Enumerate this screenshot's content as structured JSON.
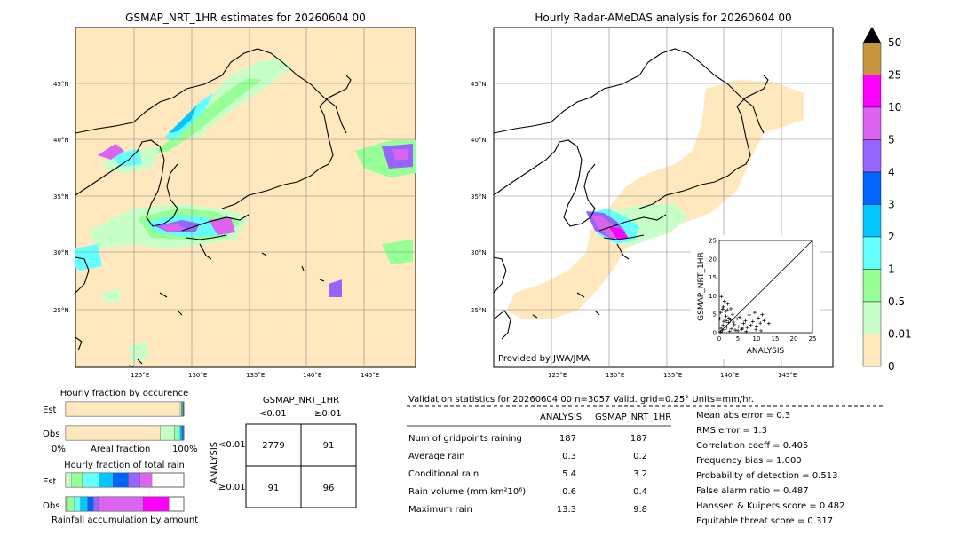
{
  "left_map": {
    "title": "GSMAP_NRT_1HR estimates for 20260604 00",
    "lon_ticks": [
      "125°E",
      "130°E",
      "135°E",
      "140°E",
      "145°E"
    ],
    "lat_ticks": [
      "45°N",
      "40°N",
      "35°N",
      "30°N",
      "25°N"
    ]
  },
  "right_map": {
    "title": "Hourly Radar-AMeDAS analysis for 20260604 00",
    "credit": "Provided by JWA/JMA",
    "lon_ticks": [
      "125°E",
      "130°E",
      "135°E",
      "140°E",
      "145°E"
    ],
    "lat_ticks": [
      "45°N",
      "40°N",
      "35°N",
      "30°N",
      "25°N"
    ]
  },
  "colorbar": {
    "labels": [
      "50",
      "25",
      "10",
      "5",
      "4",
      "3",
      "2",
      "1",
      "0.5",
      "0.01",
      "0"
    ],
    "colors": [
      "#c8963c",
      "#ff00ff",
      "#dc64f0",
      "#9664ff",
      "#0064ff",
      "#00c8ff",
      "#64ffff",
      "#96ff96",
      "#c8ffc8",
      "#ffe8be"
    ]
  },
  "chart_data": [
    {
      "type": "scatter",
      "name_x": "ANALYSIS",
      "name_y": "GSMAP_NRT_1HR",
      "xlabel": "ANALYSIS",
      "ylabel": "GSMAP_NRT_1HR",
      "xlim": [
        0,
        25
      ],
      "ylim": [
        0,
        25
      ],
      "ticks": [
        "0",
        "5",
        "10",
        "15",
        "20",
        "25"
      ],
      "points": [
        [
          0.3,
          0.2
        ],
        [
          0.5,
          1.2
        ],
        [
          0.8,
          0.5
        ],
        [
          1.0,
          2.0
        ],
        [
          1.2,
          3.1
        ],
        [
          1.5,
          0.8
        ],
        [
          1.8,
          4.5
        ],
        [
          2.0,
          1.5
        ],
        [
          2.2,
          6.2
        ],
        [
          2.5,
          2.8
        ],
        [
          2.8,
          0.4
        ],
        [
          3.0,
          3.5
        ],
        [
          3.3,
          1.1
        ],
        [
          3.6,
          5.0
        ],
        [
          4.0,
          2.2
        ],
        [
          4.3,
          0.7
        ],
        [
          4.8,
          3.8
        ],
        [
          5.2,
          1.6
        ],
        [
          5.5,
          4.2
        ],
        [
          6.0,
          0.9
        ],
        [
          6.5,
          2.5
        ],
        [
          7.0,
          3.2
        ],
        [
          7.5,
          1.4
        ],
        [
          8.0,
          4.8
        ],
        [
          8.5,
          2.0
        ],
        [
          9.0,
          3.0
        ],
        [
          9.5,
          5.5
        ],
        [
          10.0,
          1.8
        ],
        [
          10.5,
          4.0
        ],
        [
          11.0,
          2.6
        ],
        [
          11.5,
          4.9
        ],
        [
          12.0,
          3.3
        ],
        [
          13.3,
          2.5
        ],
        [
          1.1,
          7.0
        ],
        [
          0.6,
          9.8
        ],
        [
          1.4,
          8.5
        ],
        [
          2.3,
          7.8
        ],
        [
          3.1,
          6.5
        ],
        [
          0.4,
          5.5
        ],
        [
          1.7,
          5.8
        ],
        [
          2.6,
          4.0
        ],
        [
          3.8,
          2.9
        ],
        [
          5.0,
          0.5
        ],
        [
          6.2,
          1.2
        ],
        [
          7.2,
          0.3
        ],
        [
          9.8,
          0.8
        ],
        [
          11.2,
          0.5
        ],
        [
          0.2,
          3.8
        ],
        [
          0.9,
          6.4
        ],
        [
          1.9,
          3.2
        ]
      ]
    },
    {
      "type": "bar",
      "title": "Hourly fraction by occurence",
      "categories": [
        "Est",
        "Obs"
      ],
      "xlabel": "Areal fraction",
      "xtick_left": "0%",
      "xtick_right": "100%",
      "segments": {
        "Est": [
          0.97,
          0.01,
          0.005,
          0.005,
          0.005,
          0.003,
          0.002
        ],
        "Obs": [
          0.8,
          0.12,
          0.03,
          0.02,
          0.015,
          0.01,
          0.005
        ]
      }
    },
    {
      "type": "bar",
      "title": "Hourly fraction of total rain",
      "categories": [
        "Est",
        "Obs"
      ],
      "xlabel": "Rainfall accumulation by amount",
      "segments": {
        "Est": [
          0.01,
          0.04,
          0.09,
          0.14,
          0.12,
          0.13,
          0.1,
          0.1,
          0.0
        ],
        "Obs": [
          0.005,
          0.01,
          0.06,
          0.05,
          0.06,
          0.05,
          0.04,
          0.38,
          0.22
        ]
      }
    }
  ],
  "contingency": {
    "title": "GSMAP_NRT_1HR",
    "col_lt": "<0.01",
    "col_ge": "≥0.01",
    "row_axis": "ANALYSIS",
    "row_lt": "<0.01",
    "row_ge": "≥0.01",
    "cells": [
      "2779",
      "91",
      "91",
      "96"
    ]
  },
  "validation": {
    "header": "Validation statistics for 20260604 00  n=3057 Valid. grid=0.25° Units=mm/hr.",
    "col_analysis": "ANALYSIS",
    "col_gsmap": "GSMAP_NRT_1HR",
    "rows": [
      {
        "label": "Num of gridpoints raining",
        "a": "187",
        "g": "187"
      },
      {
        "label": "Average rain",
        "a": "0.3",
        "g": "0.2"
      },
      {
        "label": "Conditional rain",
        "a": "5.4",
        "g": "3.2"
      },
      {
        "label": "Rain volume (mm km²10⁶)",
        "a": "0.6",
        "g": "0.4"
      },
      {
        "label": "Maximum rain",
        "a": "13.3",
        "g": "9.8"
      }
    ],
    "scores": [
      "Mean abs error =    0.3",
      "RMS error =    1.3",
      "Correlation coeff =  0.405",
      "Frequency bias =  1.000",
      "Probability of detection =  0.513",
      "False alarm ratio =  0.487",
      "Hanssen & Kuipers score =  0.482",
      "Equitable threat score =  0.317"
    ]
  }
}
